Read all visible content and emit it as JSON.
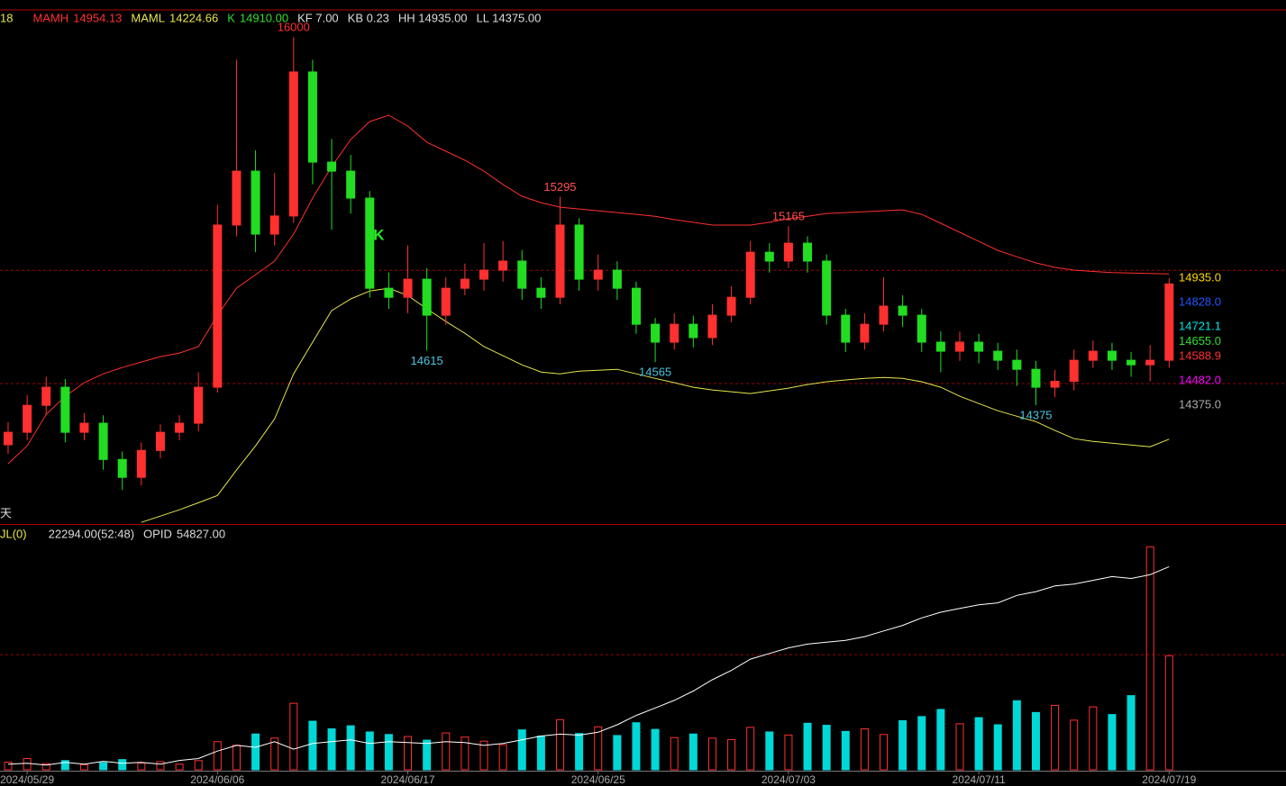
{
  "chart_data": {
    "type": "candlestick",
    "header": {
      "period": "18",
      "info": [
        "KF 7.00",
        "KB 0.23",
        "HH 14935.00",
        "LL 14375.00"
      ]
    },
    "panel_note": "天",
    "categories": [
      null,
      "2024/05/29",
      null,
      null,
      null,
      null,
      null,
      null,
      null,
      null,
      null,
      "2024/06/06",
      null,
      null,
      null,
      null,
      null,
      null,
      null,
      null,
      null,
      "2024/06/17",
      null,
      null,
      null,
      null,
      null,
      null,
      null,
      null,
      null,
      "2024/06/25",
      null,
      null,
      null,
      null,
      null,
      null,
      null,
      null,
      null,
      "2024/07/03",
      null,
      null,
      null,
      null,
      null,
      null,
      null,
      null,
      null,
      "2024/07/11",
      null,
      null,
      null,
      null,
      null,
      null,
      null,
      null,
      null,
      "2024/07/19"
    ],
    "open": [
      14200,
      14255,
      14374,
      14454,
      14255,
      14295,
      14135,
      14056,
      14175,
      14255,
      14295,
      14454,
      15170,
      15408,
      15130,
      15210,
      15846,
      15448,
      15408,
      15289,
      14891,
      14851,
      14931,
      14772,
      14891,
      14931,
      14971,
      15011,
      14891,
      14851,
      15170,
      14931,
      14971,
      14891,
      14732,
      14653,
      14732,
      14673,
      14772,
      14851,
      15050,
      15011,
      15090,
      15011,
      14772,
      14653,
      14732,
      14812,
      14772,
      14653,
      14613,
      14653,
      14613,
      14573,
      14533,
      14454,
      14480,
      14573,
      14613,
      14573,
      14553,
      14573
    ],
    "high": [
      14300,
      14420,
      14500,
      14490,
      14340,
      14330,
      14170,
      14210,
      14290,
      14330,
      14520,
      15260,
      15900,
      15500,
      15400,
      16000,
      15900,
      15550,
      15480,
      15320,
      14960,
      15080,
      14980,
      14940,
      15000,
      15090,
      15100,
      15060,
      14940,
      15295,
      15200,
      15040,
      15010,
      14920,
      14760,
      14780,
      14770,
      14820,
      14900,
      15100,
      15090,
      15165,
      15120,
      15040,
      14800,
      14780,
      14940,
      14860,
      14800,
      14700,
      14700,
      14690,
      14650,
      14620,
      14570,
      14530,
      14620,
      14660,
      14650,
      14610,
      14640,
      14935
    ],
    "low": [
      14160,
      14220,
      14330,
      14210,
      14220,
      14090,
      14000,
      14020,
      14140,
      14220,
      14260,
      14430,
      15120,
      15050,
      15080,
      15180,
      15350,
      15150,
      15220,
      14850,
      14800,
      14780,
      14615,
      14730,
      14860,
      14880,
      14920,
      14840,
      14800,
      14820,
      14880,
      14880,
      14840,
      14690,
      14565,
      14620,
      14630,
      14640,
      14740,
      14820,
      14960,
      14980,
      14960,
      14730,
      14610,
      14620,
      14700,
      14720,
      14610,
      14520,
      14570,
      14560,
      14530,
      14460,
      14375,
      14410,
      14440,
      14540,
      14530,
      14500,
      14480,
      14540
    ],
    "close": [
      14255,
      14374,
      14454,
      14255,
      14295,
      14135,
      14056,
      14175,
      14255,
      14295,
      14454,
      15170,
      15408,
      15130,
      15210,
      15846,
      15448,
      15408,
      15289,
      14891,
      14851,
      14931,
      14772,
      14891,
      14931,
      14971,
      15011,
      14891,
      14851,
      15170,
      14931,
      14971,
      14891,
      14732,
      14653,
      14732,
      14673,
      14772,
      14851,
      15050,
      15011,
      15090,
      15011,
      14772,
      14653,
      14732,
      14812,
      14772,
      14653,
      14613,
      14653,
      14613,
      14573,
      14533,
      14454,
      14480,
      14573,
      14613,
      14573,
      14553,
      14573,
      14910
    ],
    "candle_label": {
      "name": "K",
      "value_label": "14910.00",
      "color": "#33dd33"
    },
    "up_color": "#ff3030",
    "down_color": "#22dd22",
    "series": [
      {
        "name": "MAMH",
        "value_label": "14954.13",
        "color": "#ff3030",
        "values": [
          14116,
          14195,
          14334,
          14414,
          14474,
          14513,
          14541,
          14565,
          14589,
          14605,
          14633,
          14772,
          14891,
          14951,
          15011,
          15130,
          15289,
          15428,
          15548,
          15627,
          15655,
          15607,
          15536,
          15496,
          15456,
          15408,
          15349,
          15297,
          15269,
          15249,
          15241,
          15233,
          15225,
          15217,
          15209,
          15194,
          15182,
          15170,
          15170,
          15170,
          15182,
          15198,
          15209,
          15221,
          15225,
          15229,
          15233,
          15237,
          15217,
          15178,
          15138,
          15098,
          15058,
          15030,
          15003,
          14983,
          14971,
          14965,
          14960,
          14958,
          14956,
          14954.13
        ]
      },
      {
        "name": "MAML",
        "value_label": "14224.66",
        "color": "#e6e64c",
        "values": [
          null,
          null,
          null,
          null,
          null,
          null,
          null,
          13857,
          13885,
          13913,
          13944,
          13976,
          14088,
          14195,
          14314,
          14513,
          14653,
          14792,
          14844,
          14879,
          14891,
          14859,
          14800,
          14744,
          14692,
          14633,
          14593,
          14553,
          14521,
          14513,
          14525,
          14529,
          14533,
          14513,
          14493,
          14474,
          14454,
          14442,
          14434,
          14426,
          14438,
          14450,
          14466,
          14478,
          14486,
          14493,
          14497,
          14493,
          14478,
          14454,
          14414,
          14382,
          14350,
          14326,
          14302,
          14263,
          14227,
          14215,
          14207,
          14199,
          14191,
          14224.66
        ]
      }
    ],
    "ylim": [
      13850,
      16120
    ],
    "hlines": [
      14970,
      14470
    ],
    "right_labels": [
      {
        "value": 14935,
        "label": "14935.0",
        "color": "#ffd700"
      },
      {
        "value": 14828,
        "label": "14828.0",
        "color": "#2255ff"
      },
      {
        "value": 14721.1,
        "label": "14721.1",
        "color": "#00e5e5"
      },
      {
        "value": 14655,
        "label": "14655.0",
        "color": "#33dd33"
      },
      {
        "value": 14588.9,
        "label": "14588.9",
        "color": "#ff3030"
      },
      {
        "value": 14482,
        "label": "14482.0",
        "color": "#ff00ff"
      },
      {
        "value": 14375,
        "label": "14375.0",
        "color": "#aaaaaa"
      }
    ],
    "annotations": [
      {
        "index": 15,
        "value": 16000,
        "color": "#ff3030"
      },
      {
        "index": 29,
        "value": 15295,
        "color": "#ff5050"
      },
      {
        "index": 41,
        "value": 15165,
        "color": "#ff5050"
      },
      {
        "index": 22,
        "value": 14615,
        "color": "#4cc4e0"
      },
      {
        "index": 34,
        "value": 14565,
        "color": "#4cc4e0"
      },
      {
        "index": 54,
        "value": 14375,
        "color": "#4cc4e0"
      },
      {
        "index": 19,
        "value": 15122,
        "label": "K",
        "color": "#22ee22"
      }
    ],
    "volume": {
      "name": "JL(0)",
      "value_label": "22294.00(52:48)",
      "up_color": "#ff3030",
      "down_color": "#00d8d8",
      "ylim": [
        0,
        44000
      ],
      "hlines": [
        22500
      ],
      "values": [
        1500,
        2200,
        1200,
        1800,
        1000,
        1400,
        2000,
        1300,
        1600,
        1100,
        1800,
        5500,
        4800,
        7000,
        6200,
        13000,
        9500,
        8000,
        8600,
        7400,
        6900,
        6500,
        5800,
        7200,
        6400,
        5600,
        4900,
        7800,
        6600,
        9800,
        7100,
        8400,
        6700,
        9200,
        7900,
        6300,
        7000,
        6200,
        5900,
        8300,
        7400,
        6800,
        9100,
        8700,
        7500,
        8000,
        6900,
        9600,
        10400,
        11800,
        9000,
        10200,
        8800,
        13500,
        11200,
        12600,
        9700,
        12300,
        10800,
        14500,
        43600,
        22294
      ]
    },
    "open_interest": {
      "name": "OPID",
      "value_label": "54827.00",
      "color": "#ffffff",
      "y2lim": [
        44000,
        56000
      ],
      "values": [
        44300,
        44350,
        44250,
        44400,
        44300,
        44450,
        44350,
        44400,
        44300,
        44500,
        44600,
        45000,
        45300,
        45200,
        45500,
        45100,
        45400,
        45500,
        45600,
        45400,
        45500,
        45450,
        45400,
        45500,
        45450,
        45300,
        45400,
        45600,
        45800,
        45900,
        45850,
        46000,
        46400,
        46900,
        47300,
        47700,
        48200,
        48800,
        49300,
        49900,
        50200,
        50500,
        50700,
        50800,
        50900,
        51100,
        51400,
        51700,
        52100,
        52400,
        52600,
        52800,
        52900,
        53300,
        53500,
        53800,
        53900,
        54100,
        54300,
        54200,
        54400,
        54827
      ]
    }
  }
}
